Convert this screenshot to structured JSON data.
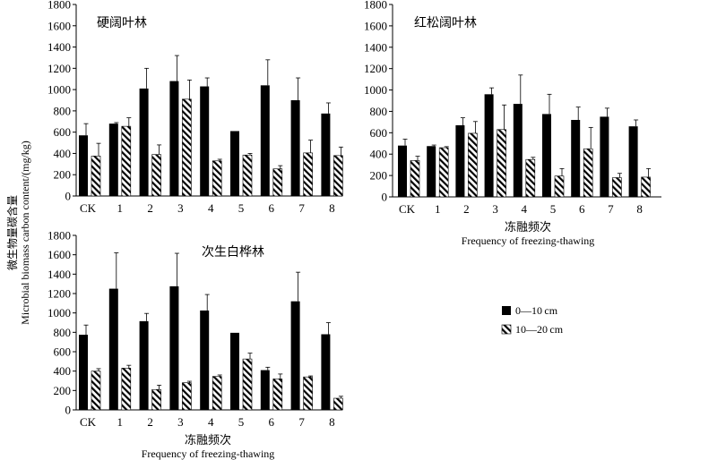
{
  "ylabel_cn": "微生物量碳含量",
  "ylabel_en": "Microbial biomass carbon content/(mg/kg)",
  "xlabel_cn": "冻融频次",
  "xlabel_en": "Frequency of freezing-thawing",
  "legend": [
    {
      "label": "0—10 cm",
      "pattern": "solid",
      "color": "#000000"
    },
    {
      "label": "10—20 cm",
      "pattern": "diagonal-hatch",
      "color": "#000000"
    }
  ],
  "chart_data": [
    {
      "type": "bar",
      "title": "硬阔叶林",
      "categories": [
        "CK",
        "1",
        "2",
        "3",
        "4",
        "5",
        "6",
        "7",
        "8"
      ],
      "yticks": [
        "0",
        "200",
        "400",
        "600",
        "800",
        "1000",
        "1200",
        "1400",
        "1600",
        "1800"
      ],
      "ylim": [
        0,
        1800
      ],
      "series": [
        {
          "name": "0—10 cm",
          "values": [
            570,
            680,
            1010,
            1080,
            1030,
            610,
            1040,
            900,
            775
          ],
          "errors": [
            110,
            10,
            190,
            240,
            80,
            0,
            240,
            210,
            100
          ]
        },
        {
          "name": "10—20 cm",
          "values": [
            375,
            655,
            390,
            910,
            330,
            385,
            255,
            405,
            380
          ],
          "errors": [
            120,
            80,
            90,
            180,
            15,
            15,
            30,
            120,
            80
          ]
        }
      ]
    },
    {
      "type": "bar",
      "title": "红松阔叶林",
      "categories": [
        "CK",
        "1",
        "2",
        "3",
        "4",
        "5",
        "6",
        "7",
        "8"
      ],
      "yticks": [
        "0",
        "200",
        "400",
        "600",
        "800",
        "1000",
        "1200",
        "1400",
        "1600",
        "1800"
      ],
      "ylim": [
        0,
        1800
      ],
      "series": [
        {
          "name": "0—10 cm",
          "values": [
            480,
            475,
            670,
            960,
            870,
            775,
            720,
            750,
            660
          ],
          "errors": [
            60,
            10,
            70,
            60,
            270,
            185,
            120,
            80,
            60
          ]
        },
        {
          "name": "10—20 cm",
          "values": [
            340,
            460,
            595,
            630,
            350,
            195,
            450,
            180,
            185
          ],
          "errors": [
            40,
            10,
            110,
            230,
            20,
            70,
            200,
            40,
            80
          ]
        }
      ]
    },
    {
      "type": "bar",
      "title": "次生白桦林",
      "categories": [
        "CK",
        "1",
        "2",
        "3",
        "4",
        "5",
        "6",
        "7",
        "8"
      ],
      "yticks": [
        "0",
        "200",
        "400",
        "600",
        "800",
        "1000",
        "1200",
        "1400",
        "1600",
        "1800"
      ],
      "ylim": [
        0,
        1800
      ],
      "series": [
        {
          "name": "0—10 cm",
          "values": [
            775,
            1250,
            915,
            1275,
            1025,
            795,
            410,
            1120,
            780
          ],
          "errors": [
            100,
            370,
            80,
            340,
            165,
            0,
            30,
            300,
            120
          ]
        },
        {
          "name": "10—20 cm",
          "values": [
            400,
            430,
            210,
            280,
            345,
            525,
            320,
            340,
            120
          ],
          "errors": [
            25,
            30,
            45,
            15,
            15,
            60,
            50,
            10,
            20
          ]
        }
      ]
    }
  ]
}
